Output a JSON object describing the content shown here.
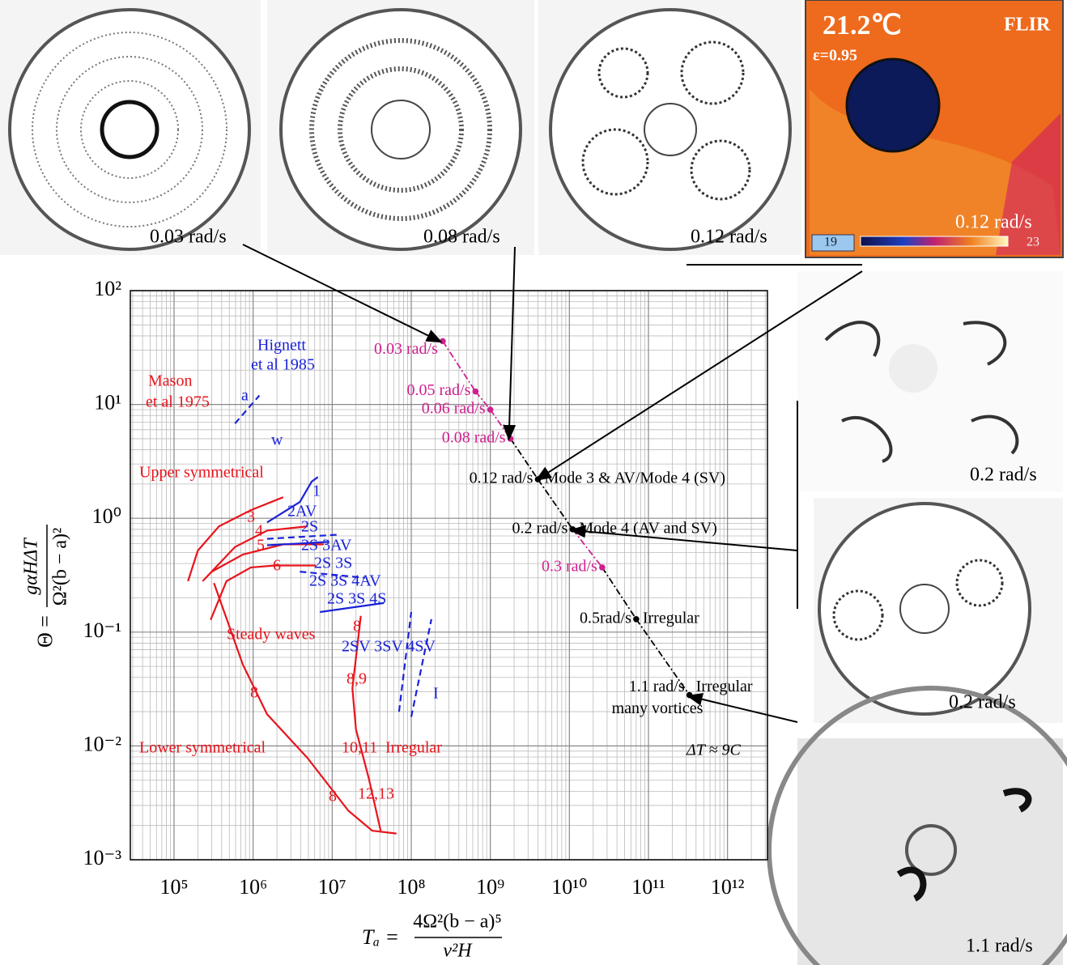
{
  "chart_data": {
    "type": "scatter",
    "xlim": [
      28000,
      3200000000000
    ],
    "ylim": [
      0.001,
      100
    ],
    "log_x": true,
    "log_y": true,
    "grid": true,
    "minor_ticks": [
      2,
      3,
      4,
      5,
      6,
      7,
      8,
      9
    ],
    "xticks": [
      {
        "value": 100000,
        "label": "10⁵"
      },
      {
        "value": 1000000,
        "label": "10⁶"
      },
      {
        "value": 10000000,
        "label": "10⁷"
      },
      {
        "value": 100000000,
        "label": "10⁸"
      },
      {
        "value": 1000000000,
        "label": "10⁹"
      },
      {
        "value": 10000000000,
        "label": "10¹⁰"
      },
      {
        "value": 100000000000,
        "label": "10¹¹"
      },
      {
        "value": 1000000000000,
        "label": "10¹²"
      }
    ],
    "yticks": [
      {
        "value": 0.001,
        "label": "10⁻³"
      },
      {
        "value": 0.01,
        "label": "10⁻²"
      },
      {
        "value": 0.1,
        "label": "10⁻¹"
      },
      {
        "value": 1,
        "label": "10⁰"
      },
      {
        "value": 10,
        "label": "10¹"
      },
      {
        "value": 100,
        "label": "10²"
      }
    ],
    "x_label": {
      "lhs": "Tₐ =",
      "num": "4Ω²(b − a)⁵",
      "den": "ν²H"
    },
    "y_label": {
      "lhs": "Θ =",
      "num": "gαHΔT",
      "den": "Ω²(b − a)²"
    },
    "points": [
      {
        "label": "0.03 rad/s",
        "color": "#d0208f",
        "x": 250000000,
        "y": 36
      },
      {
        "label": "0.05 rad/s",
        "color": "#d0208f",
        "x": 650000000,
        "y": 13
      },
      {
        "label": "0.06 rad/s",
        "color": "#d0208f",
        "x": 1000000000,
        "y": 9
      },
      {
        "label": "0.08 rad/s",
        "color": "#d0208f",
        "x": 1800000000,
        "y": 5
      },
      {
        "label": "0.12 rad/s",
        "color": "#000000",
        "x": 4000000000,
        "y": 2.2,
        "regime": [
          "Mode 3 & AV/Mode 4 (SV)"
        ]
      },
      {
        "label": "0.2 rad/s",
        "color": "#000000",
        "x": 11000000000,
        "y": 0.8,
        "regime": [
          "Mode 4 (AV and SV)"
        ]
      },
      {
        "label": "0.3 rad/s",
        "color": "#d0208f",
        "x": 26000000000,
        "y": 0.37
      },
      {
        "label": "0.5rad/s",
        "color": "#000000",
        "x": 70000000000,
        "y": 0.13,
        "regime": [
          "Irregular"
        ]
      },
      {
        "label": "1.1 rad/s",
        "color": "#000000",
        "x": 330000000000,
        "y": 0.028,
        "regime": [
          "Irregular",
          "many vortices"
        ]
      }
    ],
    "curves": [
      {
        "color": "#e8141c",
        "dash": false,
        "x": [
          150000,
          200000,
          370000,
          940000,
          2400000
        ],
        "y": [
          0.28,
          0.52,
          0.85,
          1.18,
          1.53
        ]
      },
      {
        "color": "#e8141c",
        "dash": false,
        "x": [
          230000,
          590000,
          1500000,
          4900000
        ],
        "y": [
          0.28,
          0.56,
          0.78,
          0.85
        ]
      },
      {
        "color": "#e8141c",
        "dash": false,
        "x": [
          300000,
          740000,
          2400000,
          7800000
        ],
        "y": [
          0.34,
          0.48,
          0.59,
          0.59
        ]
      },
      {
        "color": "#e8141c",
        "dash": false,
        "x": [
          290000,
          460000,
          940000,
          1900000,
          6200000
        ],
        "y": [
          0.128,
          0.28,
          0.37,
          0.385,
          0.385
        ]
      },
      {
        "color": "#e8141c",
        "dash": false,
        "x": [
          320000,
          740000,
          1500000,
          4900000,
          16000000,
          32000000,
          65000000
        ],
        "y": [
          0.27,
          0.052,
          0.019,
          0.0078,
          0.0027,
          0.0018,
          0.0017
        ]
      },
      {
        "color": "#e8141c",
        "dash": false,
        "x": [
          23000000,
          18000000,
          20000000,
          29000000,
          41000000
        ],
        "y": [
          0.139,
          0.032,
          0.014,
          0.0052,
          0.0018
        ]
      },
      {
        "color": "#1a22d8",
        "dash": false,
        "x": [
          1500000,
          3900000,
          5500000,
          6600000
        ],
        "y": [
          0.92,
          1.39,
          2.1,
          2.3
        ]
      },
      {
        "color": "#1a22d8",
        "dash": true,
        "x": [
          1500000,
          12600000
        ],
        "y": [
          0.66,
          0.72
        ]
      },
      {
        "color": "#1a22d8",
        "dash": false,
        "x": [
          1500000,
          9000000
        ],
        "y": [
          0.58,
          0.62
        ]
      },
      {
        "color": "#1a22d8",
        "dash": true,
        "x": [
          3900000,
          26000000
        ],
        "y": [
          0.34,
          0.3
        ]
      },
      {
        "color": "#1a22d8",
        "dash": false,
        "x": [
          7000000,
          45000000
        ],
        "y": [
          0.15,
          0.18
        ]
      },
      {
        "color": "#1a22d8",
        "dash": true,
        "x": [
          590000,
          1200000
        ],
        "y": [
          6.8,
          12
        ]
      },
      {
        "color": "#1a22d8",
        "dash": true,
        "x": [
          70000000,
          100000000
        ],
        "y": [
          0.02,
          0.15
        ]
      },
      {
        "color": "#1a22d8",
        "dash": true,
        "x": [
          100000000,
          180000000
        ],
        "y": [
          0.018,
          0.13
        ]
      }
    ],
    "annotations": [
      {
        "text": "Hignett",
        "color": "#1a22d8"
      },
      {
        "text": "et al 1985",
        "color": "#1a22d8"
      },
      {
        "text": "Mason",
        "color": "#e8141c"
      },
      {
        "text": "et al 1975",
        "color": "#e8141c"
      },
      {
        "text": "a",
        "color": "#1a22d8"
      },
      {
        "text": "w",
        "color": "#1a22d8"
      },
      {
        "text": "Upper symmetrical",
        "color": "#e8141c"
      },
      {
        "text": "1",
        "color": "#1a22d8"
      },
      {
        "text": "2AV",
        "color": "#1a22d8"
      },
      {
        "text": "2S",
        "color": "#1a22d8"
      },
      {
        "text": "3",
        "color": "#e8141c"
      },
      {
        "text": "4",
        "color": "#e8141c"
      },
      {
        "text": "5",
        "color": "#e8141c"
      },
      {
        "text": "6",
        "color": "#e8141c"
      },
      {
        "text": "2S 3AV",
        "color": "#1a22d8"
      },
      {
        "text": "2S 3S",
        "color": "#1a22d8"
      },
      {
        "text": "2S 3S 4AV",
        "color": "#1a22d8"
      },
      {
        "text": "2S 3S 4S",
        "color": "#1a22d8"
      },
      {
        "text": "Steady waves",
        "color": "#e8141c"
      },
      {
        "text": "8",
        "color": "#e8141c"
      },
      {
        "text": "2SV 3SV 4SV",
        "color": "#1a22d8"
      },
      {
        "text": "I",
        "color": "#1a22d8"
      },
      {
        "text": "8",
        "color": "#e8141c"
      },
      {
        "text": "8,9",
        "color": "#e8141c"
      },
      {
        "text": "Lower symmetrical",
        "color": "#e8141c"
      },
      {
        "text": "10,11",
        "color": "#e8141c"
      },
      {
        "text": "Irregular",
        "color": "#e8141c"
      },
      {
        "text": "8",
        "color": "#e8141c"
      },
      {
        "text": "12,13",
        "color": "#e8141c"
      },
      {
        "text": "ΔT ≈ 9C",
        "color": "#000000"
      }
    ]
  },
  "photos": [
    "0.03 rad/s",
    "0.08 rad/s",
    "0.12 rad/s",
    "0.2 rad/s",
    "0.2 rad/s",
    "1.1 rad/s"
  ],
  "thermal": {
    "temperature": "21.2℃",
    "emissivity": "ε=0.95",
    "brand": "FLIR",
    "rate": "0.12 rad/s",
    "scale_min": "19",
    "scale_max": "23"
  }
}
